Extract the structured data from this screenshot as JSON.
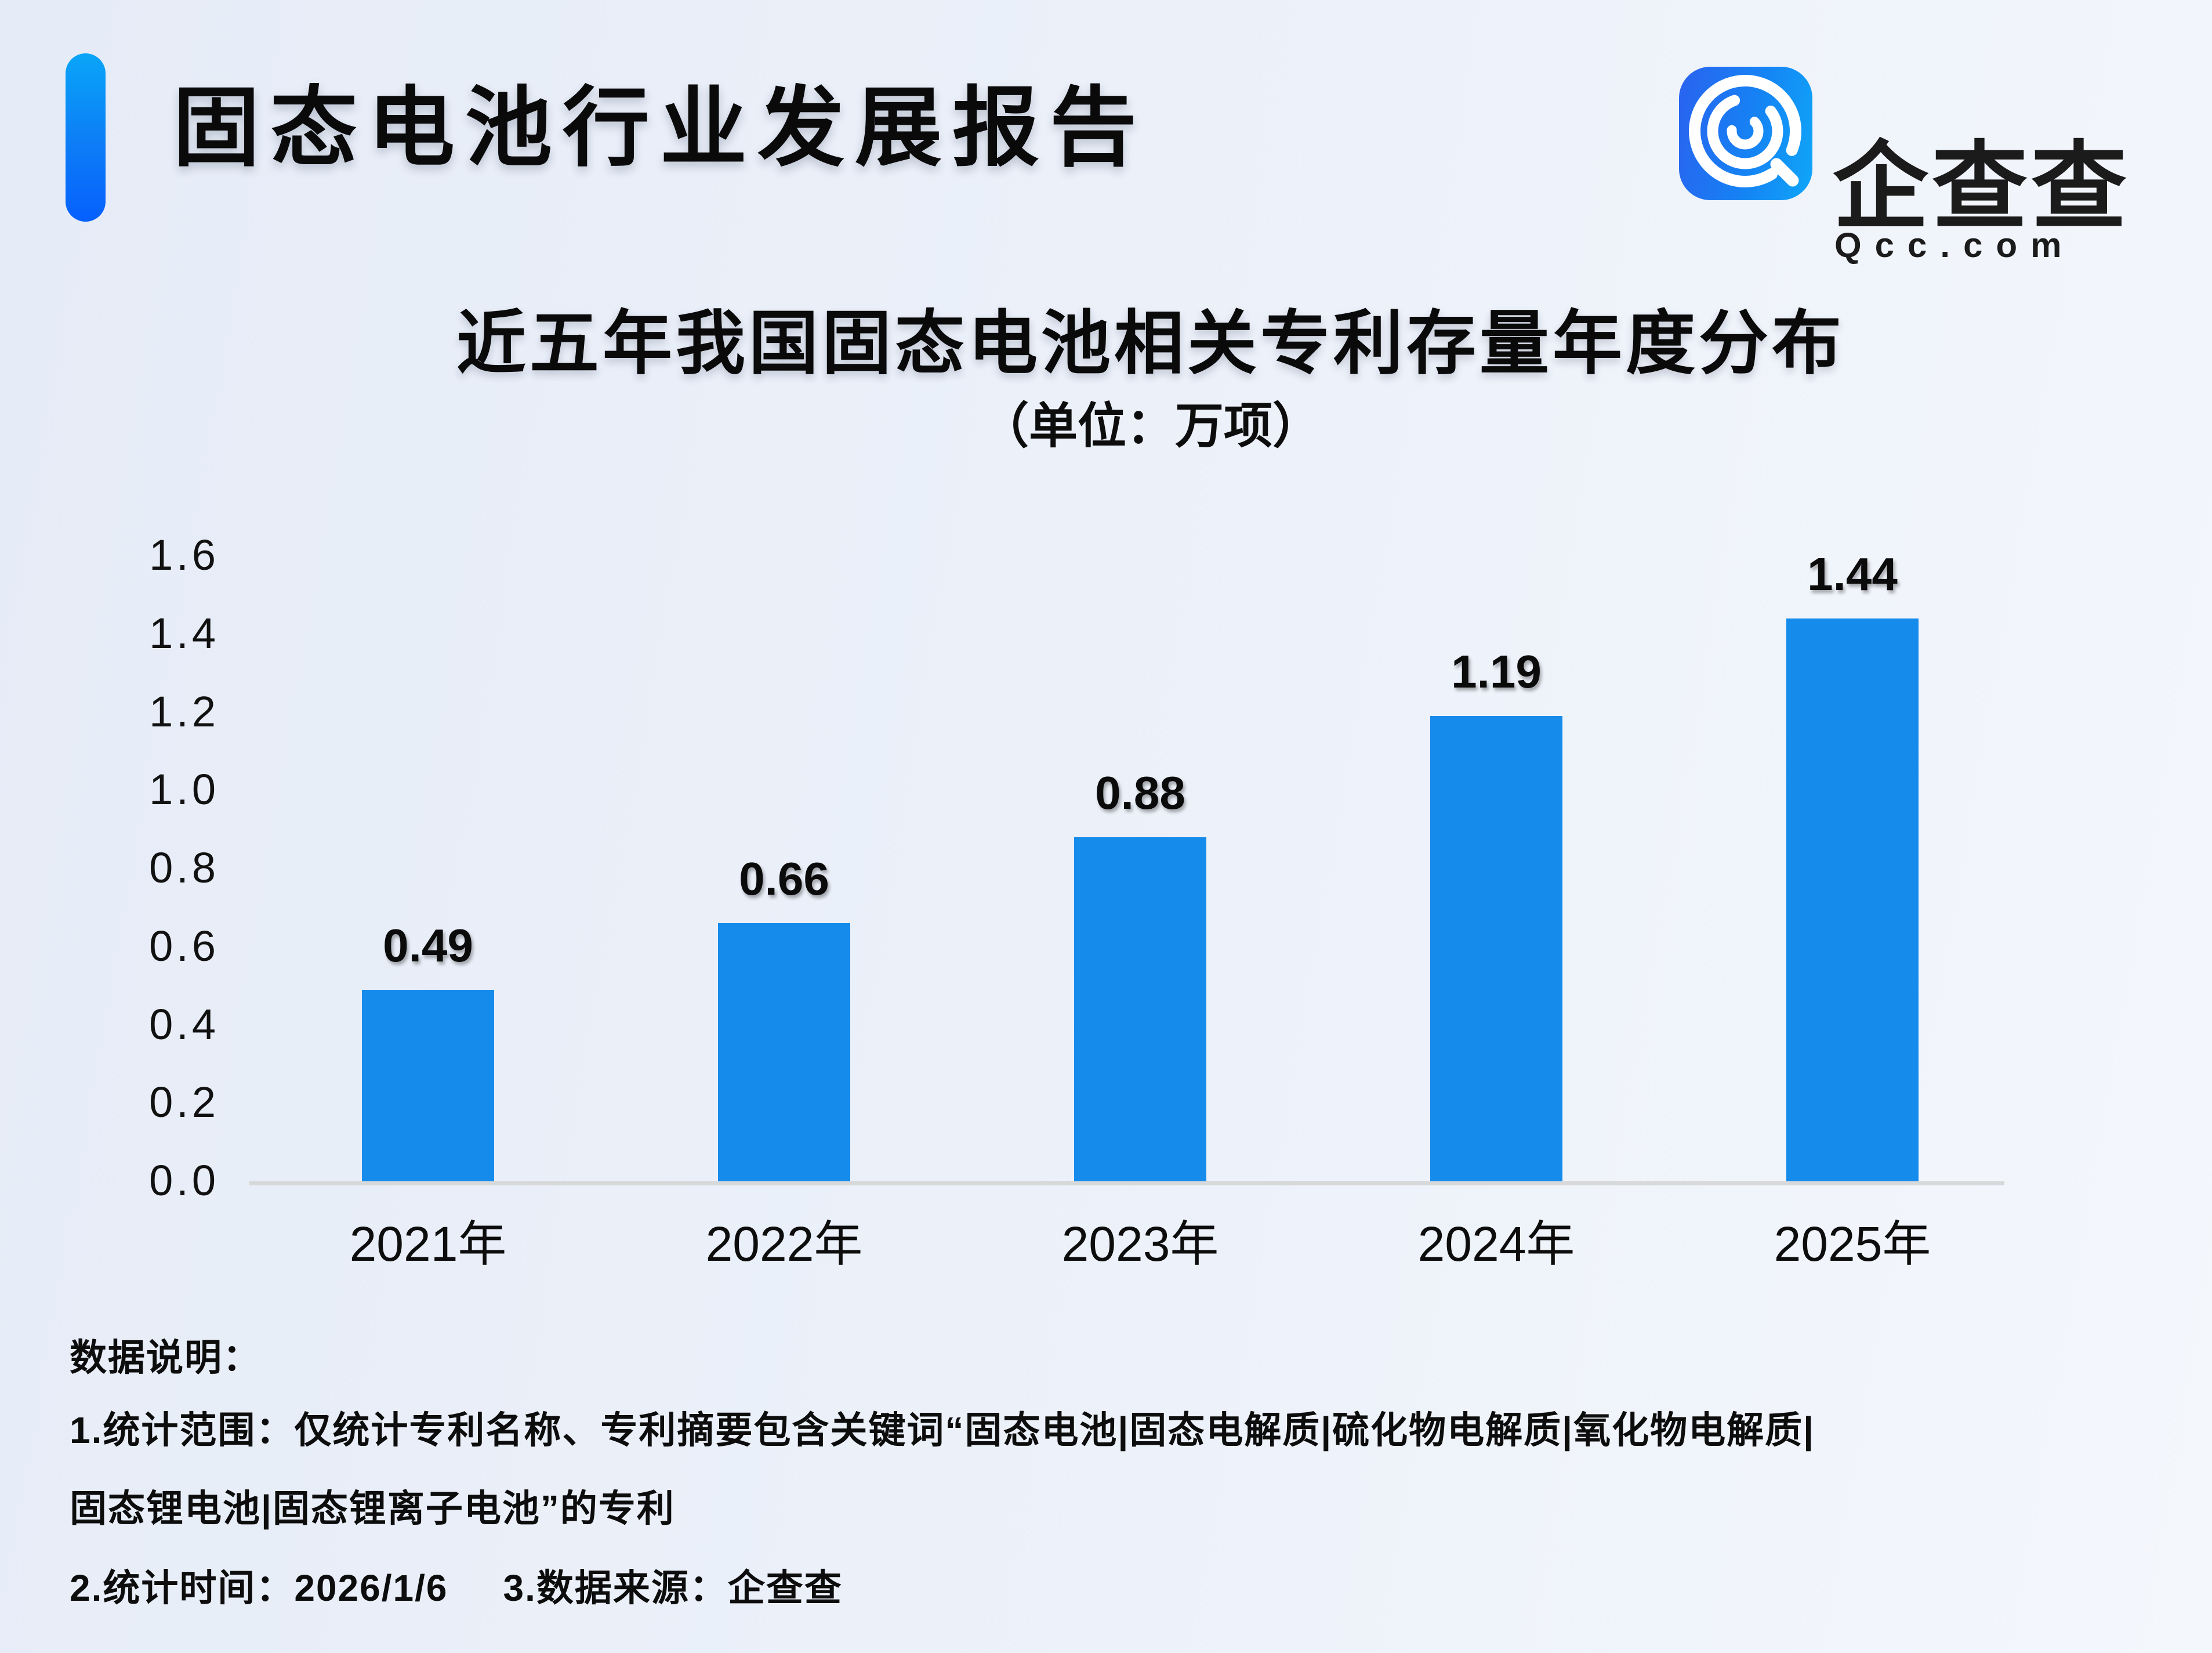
{
  "header": {
    "title": "固态电池行业发展报告",
    "logo_text": "企查查",
    "logo_domain": "Qcc.com"
  },
  "chart": {
    "title": "近五年我国固态电池相关专利存量年度分布",
    "unit_label": "（单位：万项）"
  },
  "chart_data": {
    "type": "bar",
    "title": "近五年我国固态电池相关专利存量年度分布",
    "unit": "万项",
    "categories": [
      "2021年",
      "2022年",
      "2023年",
      "2024年",
      "2025年"
    ],
    "values": [
      0.49,
      0.66,
      0.88,
      1.19,
      1.44
    ],
    "value_labels": [
      "0.49",
      "0.66",
      "0.88",
      "1.19",
      "1.44"
    ],
    "ylim": [
      0,
      1.6
    ],
    "y_ticks": [
      "0.0",
      "0.2",
      "0.4",
      "0.6",
      "0.8",
      "1.0",
      "1.2",
      "1.4",
      "1.6"
    ],
    "bar_color": "#158BEC",
    "grid": false,
    "legend_position": "none",
    "xlabel": "",
    "ylabel": ""
  },
  "notes": {
    "heading": "数据说明：",
    "line1": "1.统计范围：仅统计专利名称、专利摘要包含关键词“固态电池|固态电解质|硫化物电解质|氧化物电解质|",
    "line2": "固态锂电池|固态锂离子电池”的专利",
    "line3_left": "2.统计时间：2026/1/6",
    "line3_right": "3.数据来源：企查查"
  },
  "colors": {
    "bar": "#158BEC",
    "axis_line": "#d6d8da",
    "accent_top": "#09a5f8",
    "accent_bottom": "#0560fe",
    "logo_blue_left": "#2a62ef",
    "logo_blue_right": "#0fa6f8",
    "background_left": "#e6ecf7",
    "background_right": "#f4f7fc",
    "text": "#0a0a0a"
  }
}
